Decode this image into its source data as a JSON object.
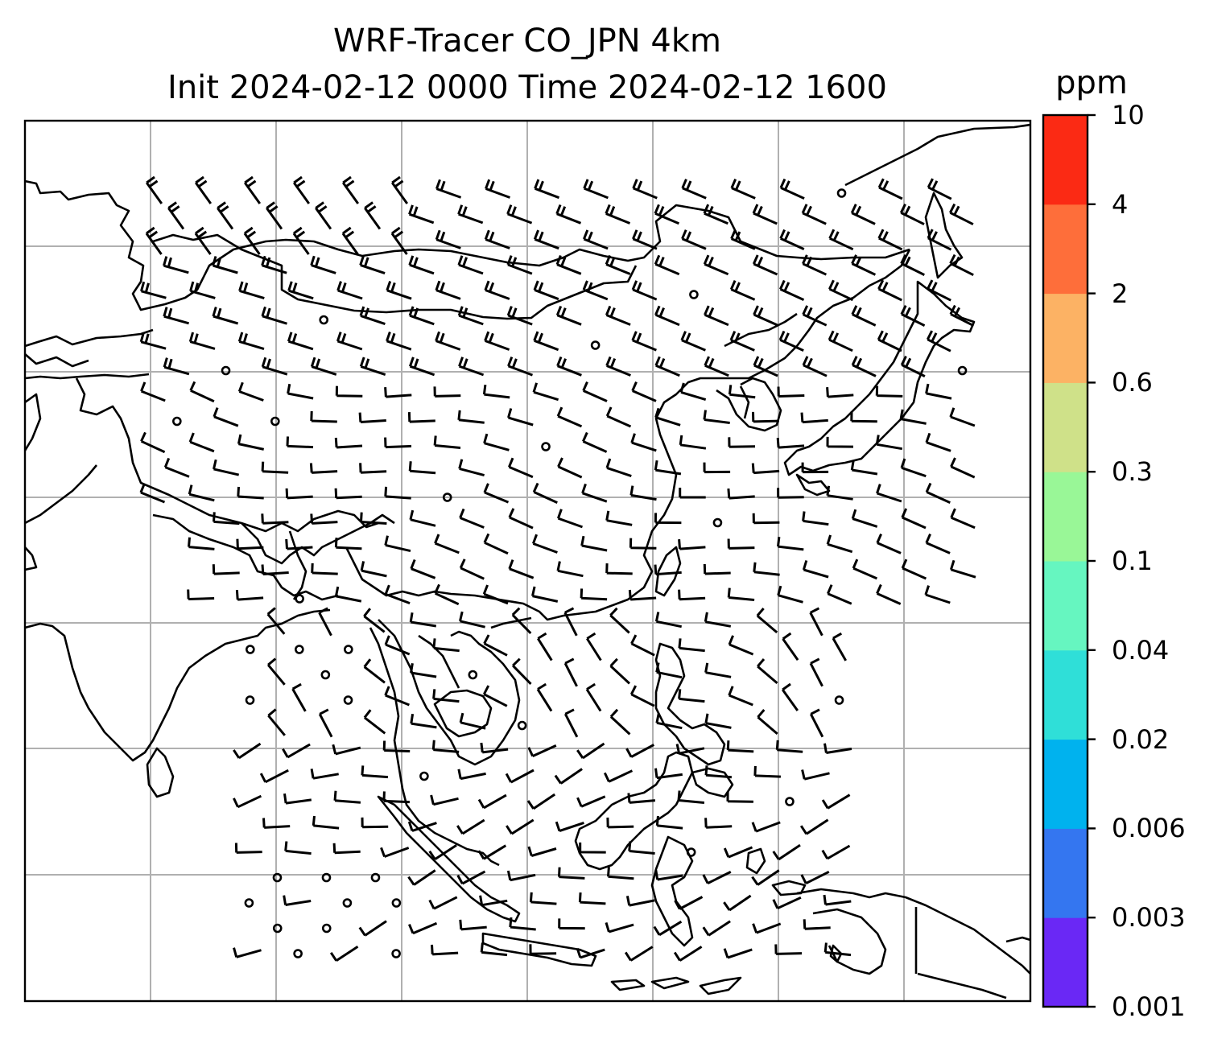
{
  "title": {
    "line1": "WRF-Tracer CO_JPN 4km",
    "line2": "Init 2024-02-12 0000 Time 2024-02-12 1600"
  },
  "colorbar": {
    "units": "ppm",
    "ticks": [
      "0.001",
      "0.003",
      "0.006",
      "0.02",
      "0.04",
      "0.1",
      "0.3",
      "0.6",
      "2",
      "4",
      "10"
    ],
    "colors": [
      "#6a28f5",
      "#3476f0",
      "#00b2ee",
      "#2fdfd8",
      "#66f6c0",
      "#99f797",
      "#cfe189",
      "#fcb264",
      "#fe6e3a",
      "#fb2a14"
    ]
  },
  "map": {
    "gridlines": true,
    "coastline_color": "#000000",
    "grid_color": "#b0b0b0",
    "wind_barbs": true
  }
}
